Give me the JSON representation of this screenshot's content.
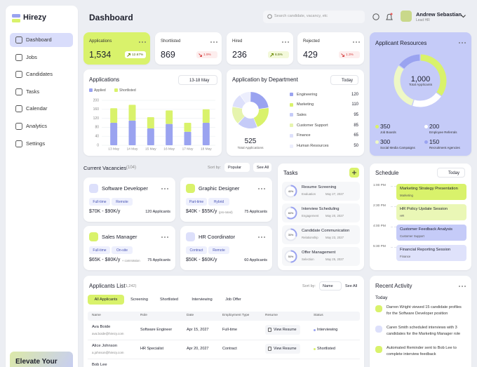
{
  "sidebar": {
    "logo": "Hirezy",
    "nav": [
      "Dashboard",
      "Jobs",
      "Candidates",
      "Tasks",
      "Calendar",
      "Analytics",
      "Settings"
    ],
    "promo": "Elevate Your"
  },
  "header": {
    "title": "Dashboard",
    "search_placeholder": "Search candidate, vacancy, etc",
    "user_name": "Andrew Sebastian",
    "user_role": "Lead HR"
  },
  "stats": [
    {
      "label": "Applications",
      "value": "1,534",
      "trend": "12.67%",
      "direction": "up"
    },
    {
      "label": "Shortlisted",
      "value": "869",
      "trend": "1.9%",
      "direction": "down"
    },
    {
      "label": "Hired",
      "value": "236",
      "trend": "6.5%",
      "direction": "up"
    },
    {
      "label": "Rejected",
      "value": "429",
      "trend": "1.3%",
      "direction": "down"
    }
  ],
  "applications_chart": {
    "type": "bar",
    "title": "Applications",
    "range": "13-18 May",
    "stacked": true,
    "categories": [
      "13 May",
      "14 May",
      "15 May",
      "16 May",
      "17 May",
      "18 May"
    ],
    "series": [
      {
        "name": "Applied",
        "color": "#9aa3f0",
        "values": [
          100,
          110,
          75,
          95,
          60,
          100
        ]
      },
      {
        "name": "Shortlisted",
        "color": "#d9f26b",
        "values": [
          65,
          70,
          50,
          60,
          40,
          60
        ]
      }
    ],
    "ylim": [
      0,
      200
    ],
    "yticks": [
      0,
      40,
      80,
      120,
      160,
      200
    ],
    "grid": true
  },
  "department_chart": {
    "type": "donut",
    "title": "Application by Department",
    "filter": "Today",
    "total": "525",
    "total_label": "Total Applications",
    "items": [
      {
        "name": "Engineering",
        "value": 120,
        "color": "#9aa3f0"
      },
      {
        "name": "Marketing",
        "value": 110,
        "color": "#d9f26b"
      },
      {
        "name": "Sales",
        "value": 95,
        "color": "#c5cbf8"
      },
      {
        "name": "Customer Support",
        "value": 85,
        "color": "#e6f4ae"
      },
      {
        "name": "Finance",
        "value": 65,
        "color": "#dde0fb"
      },
      {
        "name": "Human Resources",
        "value": 50,
        "color": "#eceefd"
      }
    ]
  },
  "resources_chart": {
    "type": "donut",
    "title": "Applicant Resources",
    "total": "1,000",
    "total_label": "Total Applicants",
    "items": [
      {
        "name": "Job Boards",
        "value": 350,
        "color": "#d9f26b"
      },
      {
        "name": "Employee Referrals",
        "value": 200,
        "color": "#ffffff"
      },
      {
        "name": "Social Media Campaigns",
        "value": 300,
        "color": "#eef8c6"
      },
      {
        "name": "Recruitment Agencies",
        "value": 150,
        "color": "#9aa3f0"
      }
    ]
  },
  "vacancies": {
    "title": "Current Vacancies",
    "count": "(104)",
    "sort_label": "Sort by:",
    "sort_value": "Popular",
    "see_all": "See All",
    "jobs": [
      {
        "title": "Software Developer",
        "tags": [
          "Full-time",
          "Remote"
        ],
        "salary": "$70K - $90K/y",
        "note": null,
        "applicants": "120 Applicants"
      },
      {
        "title": "Graphic Designer",
        "tags": [
          "Part-time",
          "Hybrid"
        ],
        "salary": "$40K - $55K/y",
        "note": "(pro-rated)",
        "applicants": "75 Applicants"
      },
      {
        "title": "Sales Manager",
        "tags": [
          "Full-time",
          "On-site"
        ],
        "salary": "$65K - $80K/y",
        "note": "+ commission",
        "applicants": "75 Applicants"
      },
      {
        "title": "HR Coordinator",
        "tags": [
          "Contract",
          "Remote"
        ],
        "salary": "$50K - $60K/y",
        "note": null,
        "applicants": "60 Applicants"
      }
    ]
  },
  "tasks": {
    "title": "Tasks",
    "items": [
      {
        "title": "Resume Screening",
        "category": "Evaluation",
        "date": "May 27, 2027",
        "progress": {
          "value": 40,
          "label": "40%"
        }
      },
      {
        "title": "Interview Scheduling",
        "category": "Engagement",
        "date": "May 20, 2027",
        "progress": {
          "value": 60,
          "label": "60%"
        }
      },
      {
        "title": "Candidate Communication",
        "category": "Relationship",
        "date": "May 23, 2027",
        "progress": {
          "value": 30,
          "label": "30%"
        }
      },
      {
        "title": "Offer Management",
        "category": "Selection",
        "date": "May 25, 2027",
        "progress": {
          "value": 50,
          "label": "50%"
        }
      }
    ]
  },
  "schedule": {
    "title": "Schedule",
    "filter": "Today",
    "times": [
      "1:00 PM",
      "2:30 PM",
      "4:00 PM",
      "5:30 PM"
    ],
    "events": [
      {
        "title": "Marketing Strategy Presentation",
        "category": "Marketing",
        "color": "#d9f26b"
      },
      {
        "title": "HR Policy Update Session",
        "category": "HR",
        "color": "#eaf7b6"
      },
      {
        "title": "Customer Feedback Analysis",
        "category": "Customer Support",
        "color": "#c5cbf8"
      },
      {
        "title": "Financial Reporting Session",
        "category": "Finance",
        "color": "#dfe2fb"
      }
    ]
  },
  "applicants": {
    "title": "Applicants List",
    "count": "(1,242)",
    "sort_label": "Sort by:",
    "sort_value": "Name",
    "see_all": "See All",
    "tabs": [
      "All Applicants",
      "Screening",
      "Shortlisted",
      "Interviewing",
      "Job Offer"
    ],
    "columns": [
      "Name",
      "Role",
      "Date",
      "Employment Type",
      "Resume",
      "Status"
    ],
    "rows": [
      {
        "name": "Ava Boide",
        "email": "ava.boide@hirezy.com",
        "role": "Software Engineer",
        "date": "Apr 15, 2027",
        "type": "Full-time",
        "resume": "View Resume",
        "status": "Interviewing"
      },
      {
        "name": "Alice Johnson",
        "email": "a.johnson@hirezy.com",
        "role": "HR Specialist",
        "date": "Apr 20, 2027",
        "type": "Contract",
        "resume": "View Resume",
        "status": "Shortlisted"
      },
      {
        "name": "Bob Lee",
        "email": null,
        "role": null,
        "date": null,
        "type": null,
        "resume": null,
        "status": null
      }
    ]
  },
  "activity": {
    "title": "Recent Activity",
    "group": "Today",
    "items": [
      "Darren Wright viewed 15 candidate profiles for the Software Developer position",
      "Caren Smith scheduled interviews with 3 candidates for the Marketing Manager role",
      "Automated Reminder sent to Bob Lee to complete interview feedback"
    ]
  }
}
